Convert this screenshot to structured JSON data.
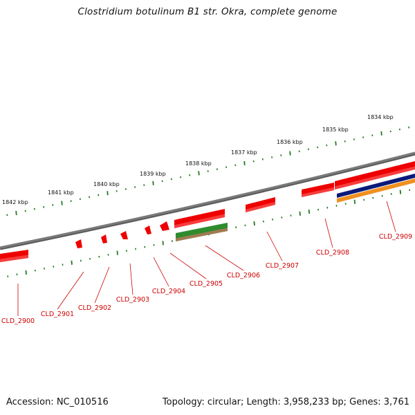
{
  "title": "Clostridium botulinum B1 str. Okra, complete genome",
  "footer": {
    "accession": "Accession: NC_010516",
    "summary": "Topology: circular; Length: 3,958,233 bp; Genes: 3,761"
  },
  "colors": {
    "backbone": "#7a7a7a",
    "ticks": "#1f7a1f",
    "gene_forward": "#ee0000",
    "gene_other": "#2e8b2e",
    "navy_band": "#0a1a7a",
    "orange_band": "#f09020",
    "label": "#cc0000"
  },
  "scale": {
    "unit": "kbp",
    "ticks": [
      "1842 kbp",
      "1841 kbp",
      "1840 kbp",
      "1839 kbp",
      "1838 kbp",
      "1837 kbp",
      "1836 kbp",
      "1835 kbp",
      "1834 kbp"
    ]
  },
  "genes": [
    "CLD_2900",
    "CLD_2901",
    "CLD_2902",
    "CLD_2903",
    "CLD_2904",
    "CLD_2905",
    "CLD_2906",
    "CLD_2907",
    "CLD_2908",
    "CLD_2909"
  ]
}
